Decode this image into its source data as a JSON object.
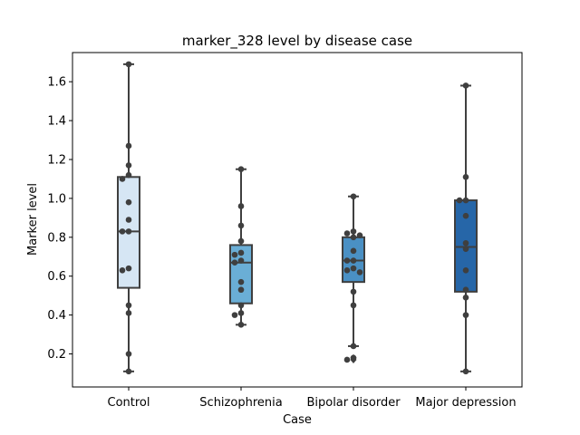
{
  "chart_data": {
    "type": "box",
    "title": "marker_328 level by disease case",
    "xlabel": "Case",
    "ylabel": "Marker level",
    "ylim": [
      0.03,
      1.75
    ],
    "yticks": [
      0.2,
      0.4,
      0.6,
      0.8,
      1.0,
      1.2,
      1.4,
      1.6
    ],
    "ytick_labels": [
      "0.2",
      "0.4",
      "0.6",
      "0.8",
      "1.0",
      "1.2",
      "1.4",
      "1.6"
    ],
    "categories": [
      "Control",
      "Schizophrenia",
      "Bipolar disorder",
      "Major depression"
    ],
    "colors": [
      "#d6e6f4",
      "#6aaed6",
      "#4a90c4",
      "#2666a8"
    ],
    "boxes": [
      {
        "q1": 0.54,
        "median": 0.83,
        "q3": 1.11,
        "whisker_low": 0.11,
        "whisker_high": 1.69,
        "outliers": []
      },
      {
        "q1": 0.46,
        "median": 0.67,
        "q3": 0.76,
        "whisker_low": 0.35,
        "whisker_high": 1.15,
        "outliers": []
      },
      {
        "q1": 0.57,
        "median": 0.68,
        "q3": 0.8,
        "whisker_low": 0.24,
        "whisker_high": 1.01,
        "outliers": [
          0.18,
          0.17
        ]
      },
      {
        "q1": 0.52,
        "median": 0.75,
        "q3": 0.99,
        "whisker_low": 0.11,
        "whisker_high": 1.58,
        "outliers": []
      }
    ],
    "points": [
      [
        1.69,
        1.27,
        1.17,
        1.12,
        1.1,
        0.98,
        0.89,
        0.83,
        0.83,
        0.64,
        0.63,
        0.45,
        0.41,
        0.2,
        0.11
      ],
      [
        1.15,
        0.96,
        0.86,
        0.78,
        0.72,
        0.71,
        0.68,
        0.67,
        0.57,
        0.53,
        0.45,
        0.41,
        0.4,
        0.35
      ],
      [
        1.01,
        0.83,
        0.82,
        0.81,
        0.8,
        0.73,
        0.68,
        0.68,
        0.64,
        0.63,
        0.62,
        0.52,
        0.45,
        0.24,
        0.18,
        0.17
      ],
      [
        1.58,
        1.11,
        0.99,
        0.99,
        0.91,
        0.77,
        0.74,
        0.63,
        0.53,
        0.49,
        0.4,
        0.11
      ]
    ]
  }
}
